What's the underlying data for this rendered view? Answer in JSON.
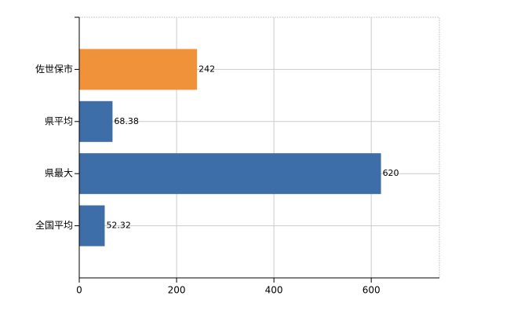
{
  "chart_data": {
    "type": "barh",
    "categories": [
      "佐世保市",
      "県平均",
      "県最大",
      "全国平均"
    ],
    "values": [
      242,
      68.38,
      620,
      52.32
    ],
    "colors": [
      "#f0923a",
      "#3d6ea8",
      "#3d6ea8",
      "#3d6ea8"
    ],
    "xlim": [
      0,
      740
    ],
    "xticks": [
      0,
      200,
      400,
      600
    ],
    "grid": true
  }
}
